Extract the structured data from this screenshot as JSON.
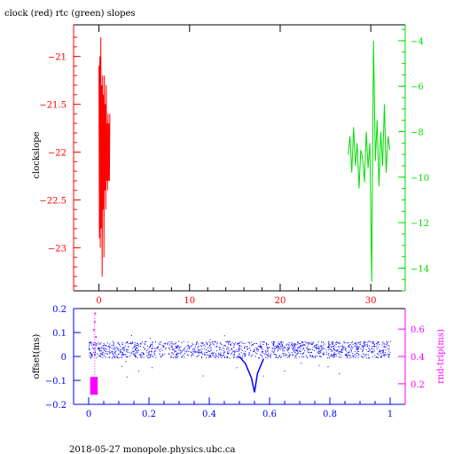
{
  "colors": {
    "clock": "#ff0000",
    "rtc": "#00dd00",
    "offset": "#0000ff",
    "roundtrip": "#ff00ff",
    "axes": "#000000"
  },
  "footer": "2018-05-27 monopole.physics.ubc.ca",
  "chart_data": [
    {
      "type": "line",
      "title": "clock (red) rtc (green) slopes",
      "ylabel": "clockslope",
      "xlabel": "",
      "grid": false,
      "xlim": [
        -2.8,
        33.8
      ],
      "ylim": [
        -23.45,
        -20.67
      ],
      "y2lim": [
        -15.0,
        -3.3
      ],
      "xticks": [
        0,
        10,
        20,
        30
      ],
      "yticks": [
        -21,
        -21.5,
        -22,
        -22.5,
        -23
      ],
      "y2ticks": [
        -4,
        -6,
        -8,
        -10,
        -12,
        -14
      ],
      "series": [
        {
          "color": "#ff0000",
          "axis": "left",
          "x": [
            0.0,
            0.05,
            0.1,
            0.15,
            0.2,
            0.25,
            0.3,
            0.35,
            0.4,
            0.45,
            0.5,
            0.55,
            0.6,
            0.65,
            0.7,
            0.75,
            0.8,
            0.85,
            0.9,
            0.95,
            1.0,
            1.05,
            1.1,
            1.15,
            1.2
          ],
          "y": [
            -21.1,
            -22.9,
            -21.0,
            -23.0,
            -20.8,
            -22.8,
            -21.3,
            -23.3,
            -21.2,
            -22.6,
            -21.4,
            -23.1,
            -21.2,
            -22.4,
            -21.5,
            -22.6,
            -21.3,
            -22.3,
            -21.7,
            -22.4,
            -21.6,
            -22.3,
            -21.7,
            -22.3,
            -21.6
          ]
        },
        {
          "color": "#00dd00",
          "axis": "right",
          "x": [
            27.5,
            27.7,
            27.9,
            28.1,
            28.3,
            28.5,
            28.7,
            28.9,
            29.1,
            29.3,
            29.5,
            29.7,
            29.9,
            30.1,
            30.3,
            30.5,
            30.7,
            30.9,
            31.1,
            31.3,
            31.5,
            31.7,
            31.9,
            32.1
          ],
          "y": [
            -9.0,
            -8.2,
            -9.8,
            -7.8,
            -9.5,
            -8.5,
            -10.5,
            -8.8,
            -9.2,
            -10.2,
            -8.0,
            -9.6,
            -8.5,
            -14.6,
            -4.0,
            -9.3,
            -7.5,
            -10.4,
            -8.0,
            -9.5,
            -6.8,
            -9.8,
            -8.2,
            -8.8
          ]
        }
      ]
    },
    {
      "type": "scatter",
      "ylabel": "offset(ms)",
      "y2label": "rnd-trip(ms)",
      "xlabel": "",
      "grid": false,
      "xlim": [
        -0.05,
        1.05
      ],
      "ylim": [
        -0.2,
        0.2
      ],
      "y2lim": [
        0.05,
        0.75
      ],
      "xticks": [
        0,
        0.2,
        0.4,
        0.6,
        0.8,
        1
      ],
      "yticks": [
        0.2,
        0.1,
        0,
        -0.1,
        -0.2
      ],
      "y2ticks": [
        0.6,
        0.4,
        0.2
      ],
      "series": [
        {
          "color": "#0000ff",
          "axis": "left",
          "band": {
            "xmin": 0.0,
            "xmax": 1.0,
            "center": 0.03,
            "spread": 0.035
          },
          "dip": {
            "x": [
              0.5,
              0.52,
              0.53,
              0.54,
              0.55,
              0.56,
              0.58
            ],
            "y": [
              0.0,
              -0.03,
              -0.06,
              -0.09,
              -0.15,
              -0.07,
              -0.01
            ]
          }
        },
        {
          "color": "#ff00ff",
          "axis": "right",
          "band": {
            "xmin": 0.005,
            "xmax": 0.03,
            "ymin": 0.12,
            "ymax": 0.25
          },
          "x": [
            0.015,
            0.018,
            0.02,
            0.022
          ],
          "y": [
            0.6,
            0.66,
            0.72,
            0.55
          ]
        }
      ]
    }
  ]
}
